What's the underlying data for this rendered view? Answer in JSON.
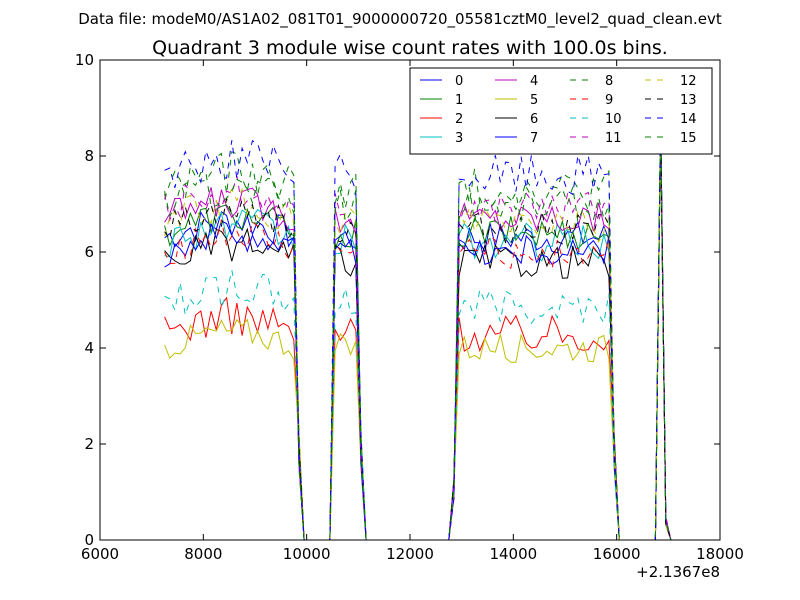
{
  "figure": {
    "suptitle": "Data file: modeM0/AS1A02_081T01_9000000720_05581cztM0_level2_quad_clean.evt"
  },
  "chart_data": {
    "type": "line",
    "title": "Quadrant 3 module wise count rates with 100.0s bins.",
    "xlabel": "",
    "ylabel": "",
    "xlim": [
      6000,
      18000
    ],
    "ylim": [
      0,
      10
    ],
    "x_offset_label": "+2.1367e8",
    "x_ticks": [
      6000,
      8000,
      10000,
      12000,
      14000,
      16000,
      18000
    ],
    "x_tick_labels": [
      "6000",
      "8000",
      "10000",
      "12000",
      "14000",
      "16000",
      "18000"
    ],
    "y_ticks": [
      0,
      2,
      4,
      6,
      8,
      10
    ],
    "y_tick_labels": [
      "0",
      "2",
      "4",
      "6",
      "8",
      "10"
    ],
    "grid": false,
    "legend_position": "top-right",
    "segments": [
      {
        "start": 7250,
        "end": 9850,
        "bin": 100
      },
      {
        "start": 10550,
        "end": 11050,
        "bin": 100
      },
      {
        "start": 12850,
        "end": 15950,
        "bin": 100
      },
      {
        "start": 16850,
        "end": 16950,
        "bin": 100
      }
    ],
    "gap_value": 0,
    "series": [
      {
        "name": "0",
        "color": "#0000ff",
        "dash": "solid",
        "base": 6.3,
        "amp": 0.35,
        "spike": 8.8
      },
      {
        "name": "1",
        "color": "#008000",
        "dash": "solid",
        "base": 6.4,
        "amp": 0.35,
        "spike": 8.8
      },
      {
        "name": "2",
        "color": "#ff0000",
        "dash": "solid",
        "base": 4.3,
        "amp": 0.4,
        "spike": 8.5
      },
      {
        "name": "3",
        "color": "#00bfbf",
        "dash": "solid",
        "base": 6.2,
        "amp": 0.4,
        "spike": 8.6
      },
      {
        "name": "4",
        "color": "#bf00bf",
        "dash": "solid",
        "base": 6.7,
        "amp": 0.35,
        "spike": 8.7
      },
      {
        "name": "5",
        "color": "#bfbf00",
        "dash": "solid",
        "base": 4.0,
        "amp": 0.3,
        "spike": 8.4
      },
      {
        "name": "6",
        "color": "#000000",
        "dash": "solid",
        "base": 5.8,
        "amp": 0.35,
        "spike": 8.6
      },
      {
        "name": "7",
        "color": "#0000ff",
        "dash": "solid",
        "base": 6.0,
        "amp": 0.35,
        "spike": 8.9
      },
      {
        "name": "8",
        "color": "#008000",
        "dash": "dashed",
        "base": 7.3,
        "amp": 0.45,
        "spike": 8.9
      },
      {
        "name": "9",
        "color": "#ff0000",
        "dash": "dashed",
        "base": 6.0,
        "amp": 0.35,
        "spike": 8.6
      },
      {
        "name": "10",
        "color": "#00bfbf",
        "dash": "dashed",
        "base": 4.9,
        "amp": 0.4,
        "spike": 8.5
      },
      {
        "name": "11",
        "color": "#bf00bf",
        "dash": "dashed",
        "base": 6.9,
        "amp": 0.35,
        "spike": 8.7
      },
      {
        "name": "12",
        "color": "#bfbf00",
        "dash": "dashed",
        "base": 6.6,
        "amp": 0.4,
        "spike": 8.6
      },
      {
        "name": "13",
        "color": "#000000",
        "dash": "dashed",
        "base": 6.5,
        "amp": 0.35,
        "spike": 8.6
      },
      {
        "name": "14",
        "color": "#0000ff",
        "dash": "dashed",
        "base": 7.6,
        "amp": 0.45,
        "spike": 8.9
      },
      {
        "name": "15",
        "color": "#008000",
        "dash": "dashed",
        "base": 7.0,
        "amp": 0.4,
        "spike": 8.8
      }
    ]
  }
}
